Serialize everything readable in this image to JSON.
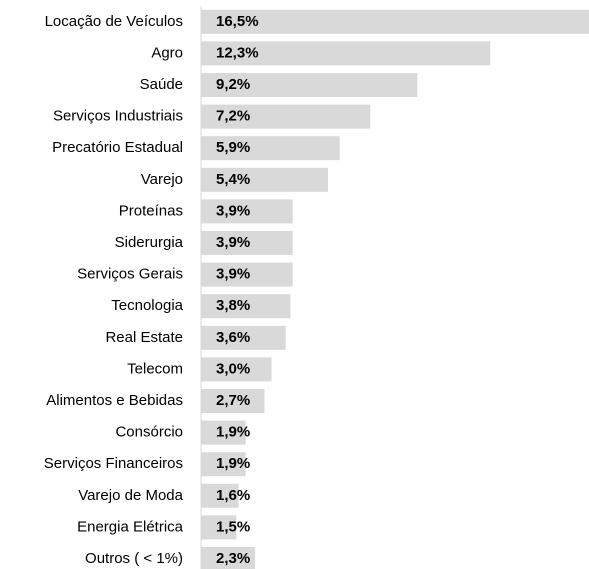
{
  "chart_data": {
    "type": "bar",
    "orientation": "horizontal",
    "categories": [
      "Locação de Veículos",
      "Agro",
      "Saúde",
      "Serviços Industriais",
      "Precatório Estadual",
      "Varejo",
      "Proteínas",
      "Siderurgia",
      "Serviços Gerais",
      "Tecnologia",
      "Real Estate",
      "Telecom",
      "Alimentos e Bebidas",
      "Consórcio",
      "Serviços Financeiros",
      "Varejo de Moda",
      "Energia Elétrica",
      "Outros ( < 1%)"
    ],
    "values": [
      16.5,
      12.3,
      9.2,
      7.2,
      5.9,
      5.4,
      3.9,
      3.9,
      3.9,
      3.8,
      3.6,
      3.0,
      2.7,
      1.9,
      1.9,
      1.6,
      1.5,
      2.3
    ],
    "value_labels": [
      "16,5%",
      "12,3%",
      "9,2%",
      "7,2%",
      "5,9%",
      "5,4%",
      "3,9%",
      "3,9%",
      "3,9%",
      "3,8%",
      "3,6%",
      "3,0%",
      "2,7%",
      "1,9%",
      "1,9%",
      "1,6%",
      "1,5%",
      "2,3%"
    ],
    "color": "#d9d9d9"
  }
}
